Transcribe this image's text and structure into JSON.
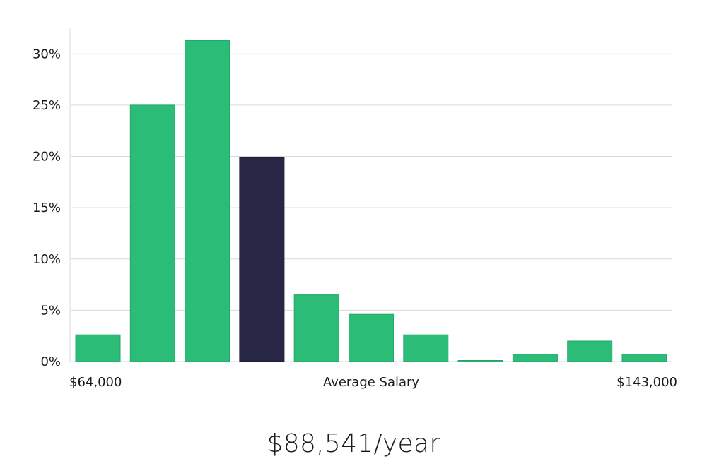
{
  "chart_data": {
    "type": "bar",
    "categories": [
      "1",
      "2",
      "3",
      "4",
      "5",
      "6",
      "7",
      "8",
      "9",
      "10",
      "11"
    ],
    "values": [
      2.6,
      25.0,
      31.3,
      19.9,
      6.5,
      4.6,
      2.6,
      0.1,
      0.7,
      2.0,
      0.7
    ],
    "highlight_index": 3,
    "ylim": [
      0,
      32.5
    ],
    "yticks": [
      0,
      5,
      10,
      15,
      20,
      25,
      30
    ],
    "ytick_labels": [
      "0%",
      "5%",
      "10%",
      "15%",
      "20%",
      "25%",
      "30%"
    ],
    "x_min_label": "$64,000",
    "x_max_label": "$143,000",
    "xlabel": "Average Salary",
    "grid": true,
    "colors": {
      "bar": "#2bbd77",
      "bar_border": "#22a866",
      "highlight": "#282645",
      "highlight_border": "#16152e",
      "grid": "#d9d9d9"
    }
  },
  "summary": {
    "salary": "$88,541/year"
  }
}
